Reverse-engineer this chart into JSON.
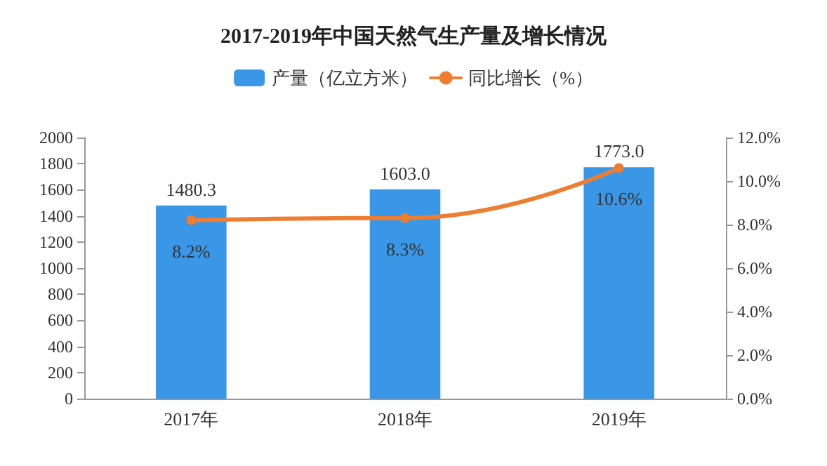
{
  "chart_data": {
    "type": "bar",
    "title": "2017-2019年中国天然气生产量及增长情况",
    "categories": [
      "2017年",
      "2018年",
      "2019年"
    ],
    "series": [
      {
        "name": "产量（亿立方米）",
        "color": "#3a96e6",
        "values": [
          1480.3,
          1603.0,
          1773.0
        ],
        "value_labels": [
          "1480.3",
          "1603.0",
          "1773.0"
        ]
      },
      {
        "name": "同比增长（%）",
        "type": "line",
        "axis": "y2",
        "color": "#ed7d31",
        "values": [
          8.2,
          8.3,
          10.6
        ],
        "value_labels": [
          "8.2%",
          "8.3%",
          "10.6%"
        ]
      }
    ],
    "ylim": [
      0,
      2000
    ],
    "yticks": [
      0,
      200,
      400,
      600,
      800,
      1000,
      1200,
      1400,
      1600,
      1800,
      2000
    ],
    "y2lim": [
      0,
      12
    ],
    "y2ticks": [
      {
        "value": 0,
        "label": "0.0%"
      },
      {
        "value": 2,
        "label": "2.0%"
      },
      {
        "value": 4,
        "label": "4.0%"
      },
      {
        "value": 6,
        "label": "6.0%"
      },
      {
        "value": 8,
        "label": "8.0%"
      },
      {
        "value": 10,
        "label": "10.0%"
      },
      {
        "value": 12,
        "label": "12.0%"
      }
    ],
    "legend": "top",
    "grid": false,
    "marker": "circle"
  }
}
